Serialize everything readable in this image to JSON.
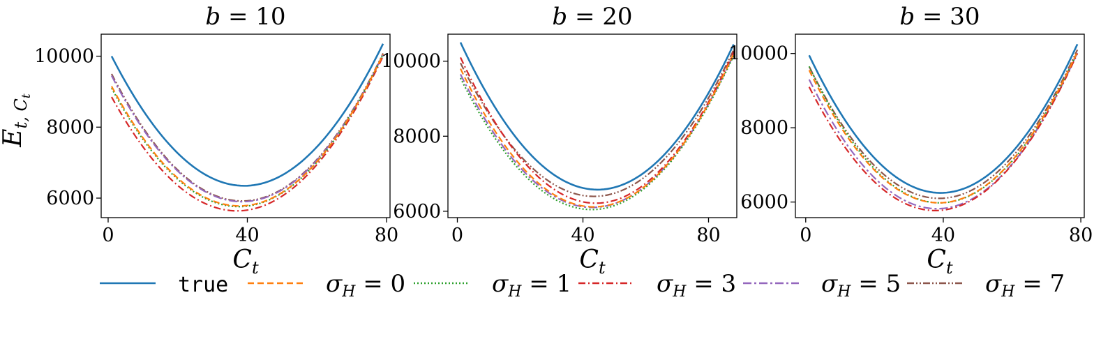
{
  "figure": {
    "ylabel_main": "E",
    "ylabel_sub": "t, C",
    "ylabel_subsub": "t",
    "xlabel_main": "C",
    "xlabel_sub": "t"
  },
  "legend": {
    "items": [
      {
        "label": "true",
        "is_math": false,
        "color": "#1f77b4",
        "dash": ""
      },
      {
        "label_main": "σ",
        "label_sub": "H",
        "label_rest": " = 0",
        "is_math": true,
        "color": "#ff7f0e",
        "dash": "9,5"
      },
      {
        "label_main": "σ",
        "label_sub": "H",
        "label_rest": " = 1",
        "is_math": true,
        "color": "#2ca02c",
        "dash": "2,3"
      },
      {
        "label_main": "σ",
        "label_sub": "H",
        "label_rest": " = 3",
        "is_math": true,
        "color": "#d62728",
        "dash": "10,4,2,4"
      },
      {
        "label_main": "σ",
        "label_sub": "H",
        "label_rest": " = 5",
        "is_math": true,
        "color": "#9467bd",
        "dash": "12,4,3,4"
      },
      {
        "label_main": "σ",
        "label_sub": "H",
        "label_rest": " = 7",
        "is_math": true,
        "color": "#8c564b",
        "dash": "10,3,2,3,2,3"
      }
    ]
  },
  "chart_data": [
    {
      "type": "line",
      "title_main": "b",
      "title_rest": " = 10",
      "xlabel": "C_t",
      "ylabel": "E_{t,C_t}",
      "xlim": [
        -2,
        81
      ],
      "ylim": [
        5450,
        10620
      ],
      "xticks": [
        0,
        40,
        80
      ],
      "yticks": [
        6000,
        8000,
        10000
      ],
      "series": [
        {
          "name": "true",
          "x": [
            1,
            38,
            79
          ],
          "y": [
            10000,
            6350,
            10350
          ]
        },
        {
          "name": "σ_H = 0",
          "x": [
            1,
            38,
            79
          ],
          "y": [
            9150,
            5780,
            10050
          ]
        },
        {
          "name": "σ_H = 1",
          "x": [
            1,
            38,
            79
          ],
          "y": [
            9100,
            5760,
            10050
          ]
        },
        {
          "name": "σ_H = 3",
          "x": [
            1,
            37,
            79
          ],
          "y": [
            8850,
            5640,
            10000
          ]
        },
        {
          "name": "σ_H = 5",
          "x": [
            1,
            38,
            79
          ],
          "y": [
            9450,
            5900,
            10050
          ]
        },
        {
          "name": "σ_H = 7",
          "x": [
            1,
            38,
            79
          ],
          "y": [
            9500,
            5920,
            10080
          ]
        }
      ]
    },
    {
      "type": "line",
      "title_main": "b",
      "title_rest": " = 20",
      "xlabel": "C_t",
      "ylabel": "",
      "xlim": [
        -3,
        89
      ],
      "ylim": [
        5830,
        10720
      ],
      "xticks": [
        0,
        40,
        80
      ],
      "yticks": [
        6000,
        8000,
        10000
      ],
      "series": [
        {
          "name": "true",
          "x": [
            1,
            40,
            88
          ],
          "y": [
            10500,
            6620,
            10450
          ]
        },
        {
          "name": "σ_H = 0",
          "x": [
            1,
            40,
            88
          ],
          "y": [
            9800,
            6140,
            10200
          ]
        },
        {
          "name": "σ_H = 1",
          "x": [
            1,
            40,
            88
          ],
          "y": [
            9550,
            6060,
            10150
          ]
        },
        {
          "name": "σ_H = 3",
          "x": [
            1,
            40,
            88
          ],
          "y": [
            10100,
            6250,
            10250
          ]
        },
        {
          "name": "σ_H = 5",
          "x": [
            1,
            40,
            88
          ],
          "y": [
            9650,
            6120,
            10180
          ]
        },
        {
          "name": "σ_H = 7",
          "x": [
            1,
            40,
            88
          ],
          "y": [
            9950,
            6420,
            10300
          ]
        }
      ]
    },
    {
      "type": "line",
      "title_main": "b",
      "title_rest": " = 30",
      "xlabel": "C_t",
      "ylabel": "",
      "xlim": [
        -3,
        81
      ],
      "ylim": [
        5580,
        10520
      ],
      "xticks": [
        0,
        40,
        80
      ],
      "yticks": [
        6000,
        8000,
        10000
      ],
      "series": [
        {
          "name": "true",
          "x": [
            1,
            38,
            79
          ],
          "y": [
            9950,
            6250,
            10250
          ]
        },
        {
          "name": "σ_H = 0",
          "x": [
            1,
            38,
            79
          ],
          "y": [
            9550,
            5980,
            10050
          ]
        },
        {
          "name": "σ_H = 1",
          "x": [
            1,
            38,
            79
          ],
          "y": [
            9650,
            5980,
            10050
          ]
        },
        {
          "name": "σ_H = 3",
          "x": [
            1,
            38,
            79
          ],
          "y": [
            9100,
            5770,
            10000
          ]
        },
        {
          "name": "σ_H = 5",
          "x": [
            1,
            38,
            79
          ],
          "y": [
            9300,
            5820,
            10020
          ]
        },
        {
          "name": "σ_H = 7",
          "x": [
            1,
            38,
            79
          ],
          "y": [
            9650,
            6100,
            10100
          ]
        }
      ]
    }
  ]
}
